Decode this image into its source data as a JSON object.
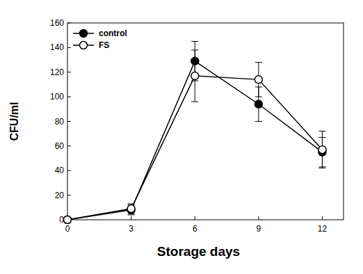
{
  "chart_data": {
    "type": "line",
    "x_label": "Storage days",
    "y_label": "CFU/ml",
    "x": [
      0,
      3,
      6,
      9,
      12
    ],
    "series": [
      {
        "name": "control",
        "color": "#000000",
        "marker": "filled-circle",
        "values": [
          0,
          8,
          129,
          94,
          55
        ],
        "errors": [
          0,
          4,
          16,
          14,
          12
        ]
      },
      {
        "name": "FS",
        "color": "#000000",
        "marker": "open-circle",
        "values": [
          0,
          9,
          117,
          114,
          57
        ],
        "errors": [
          0,
          4,
          21,
          14,
          15
        ]
      }
    ],
    "xlim": [
      0,
      13
    ],
    "xticks": [
      0,
      3,
      6,
      9,
      12
    ],
    "ylim": [
      0,
      160
    ],
    "yticks": [
      0,
      20,
      40,
      60,
      80,
      100,
      120,
      140,
      160
    ],
    "grid": false,
    "legend": "upper-left"
  }
}
